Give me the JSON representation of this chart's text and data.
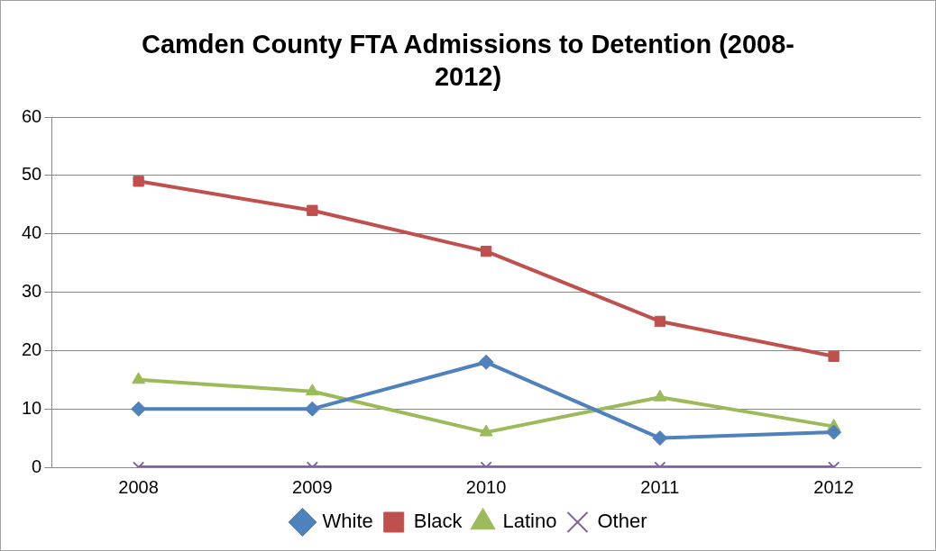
{
  "chart_data": {
    "type": "line",
    "title": "Camden County FTA Admissions to Detention (2008-2012)",
    "categories": [
      "2008",
      "2009",
      "2010",
      "2011",
      "2012"
    ],
    "series": [
      {
        "name": "White",
        "color": "#4f81bd",
        "marker": "diamond",
        "values": [
          10,
          10,
          18,
          5,
          6
        ]
      },
      {
        "name": "Black",
        "color": "#c0504d",
        "marker": "square",
        "values": [
          49,
          44,
          37,
          25,
          19
        ]
      },
      {
        "name": "Latino",
        "color": "#9bbb59",
        "marker": "triangle",
        "values": [
          15,
          13,
          6,
          12,
          7
        ]
      },
      {
        "name": "Other",
        "color": "#8064a2",
        "marker": "cross",
        "values": [
          0,
          0,
          0,
          0,
          0
        ]
      }
    ],
    "ylim": [
      0,
      60
    ],
    "yticks": [
      0,
      10,
      20,
      30,
      40,
      50,
      60
    ],
    "grid": "y",
    "legend": "bottom"
  }
}
